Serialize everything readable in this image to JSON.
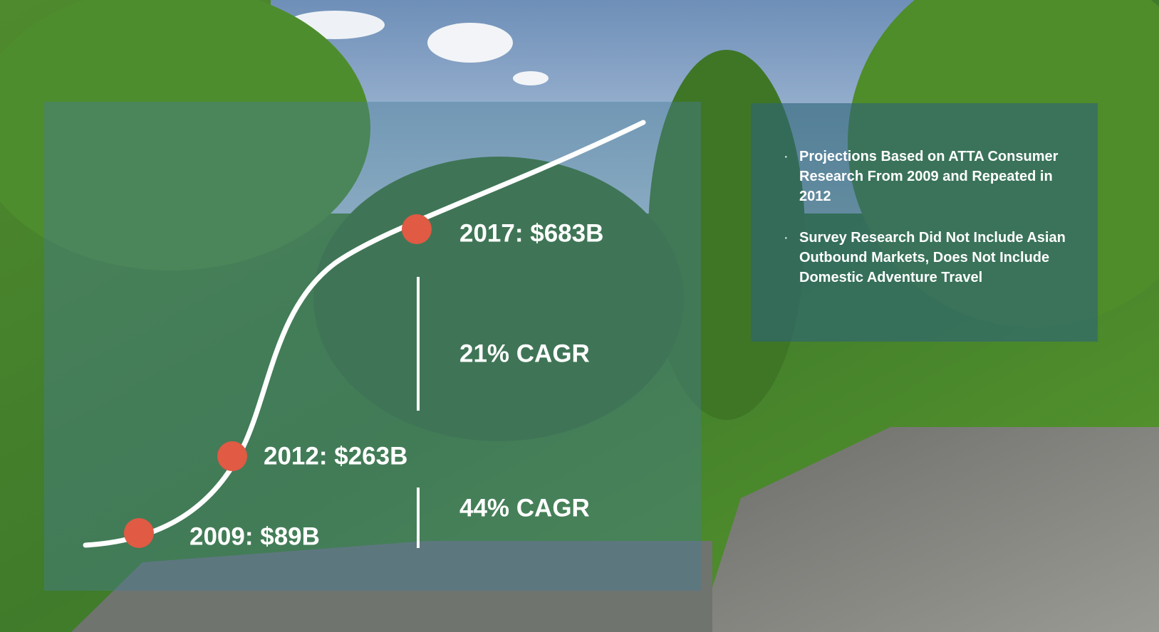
{
  "growth": {
    "milestones": [
      {
        "label": "2009: $89B"
      },
      {
        "label": "2012: $263B"
      },
      {
        "label": "2017: $683B"
      }
    ],
    "rates": [
      {
        "label": "44% CAGR"
      },
      {
        "label": "21% CAGR"
      }
    ]
  },
  "notes": [
    "Projections Based on ATTA Consumer Research From 2009 and Repeated in 2012",
    "Survey Research Did Not Include Asian Outbound Markets, Does Not Include Domestic Adventure Travel"
  ]
}
